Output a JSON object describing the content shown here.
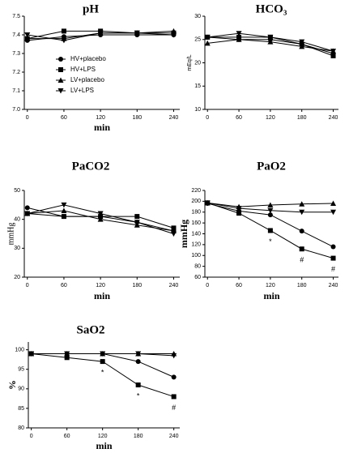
{
  "chart_data": [
    {
      "type": "line",
      "title": "pH",
      "x_label": "min",
      "x": [
        0,
        60,
        120,
        180,
        240
      ],
      "xlim": [
        -5,
        250
      ],
      "xticks": [
        0,
        60,
        120,
        180,
        240
      ],
      "ylim": [
        7.0,
        7.5
      ],
      "yticks": [
        {
          "value": 7.0,
          "label": "7.0"
        },
        7.1,
        7.2,
        7.3,
        7.4,
        7.5
      ],
      "legend": "upper-left",
      "series": [
        {
          "name": "HV+placebo",
          "marker": "circle",
          "color": "#000000",
          "values": [
            7.37,
            7.39,
            7.4,
            7.4,
            7.4
          ]
        },
        {
          "name": "HV+LPS",
          "marker": "square",
          "color": "#000000",
          "values": [
            7.38,
            7.42,
            7.42,
            7.41,
            7.41
          ]
        },
        {
          "name": "LV+placebo",
          "marker": "triangle-up",
          "color": "#000000",
          "values": [
            7.38,
            7.38,
            7.41,
            7.41,
            7.42
          ]
        },
        {
          "name": "LV+LPS",
          "marker": "triangle-down",
          "color": "#000000",
          "values": [
            7.4,
            7.37,
            7.41,
            7.41,
            7.4
          ]
        }
      ]
    },
    {
      "type": "line",
      "title": "HCO₃",
      "y_label": "mEq/L",
      "x": [
        0,
        60,
        120,
        180,
        240
      ],
      "xlim": [
        -5,
        250
      ],
      "xticks": [
        0,
        60,
        120,
        180,
        240
      ],
      "ylim": [
        10,
        30
      ],
      "yticks": [
        10,
        15,
        20,
        25,
        30
      ],
      "series": [
        {
          "marker": "circle",
          "color": "#000000",
          "values": [
            25.5,
            25,
            25,
            24,
            22
          ]
        },
        {
          "marker": "square",
          "color": "#000000",
          "values": [
            25.5,
            25.5,
            25.5,
            24,
            21.5
          ]
        },
        {
          "marker": "triangle-up",
          "color": "#000000",
          "values": [
            24.2,
            25,
            24.5,
            23.5,
            22.5
          ]
        },
        {
          "marker": "triangle-down",
          "color": "#000000",
          "values": [
            25.5,
            26.3,
            25.5,
            24.5,
            22.5
          ]
        }
      ]
    },
    {
      "type": "line",
      "title": "PaCO2",
      "x_label": "min",
      "y_label": "mmHg",
      "x": [
        0,
        60,
        120,
        180,
        240
      ],
      "xlim": [
        -5,
        250
      ],
      "xticks": [
        0,
        60,
        120,
        180,
        240
      ],
      "ylim": [
        20,
        50
      ],
      "yticks": [
        20,
        30,
        40,
        50
      ],
      "series": [
        {
          "marker": "circle",
          "color": "#000000",
          "values": [
            44,
            41,
            41,
            39,
            36
          ]
        },
        {
          "marker": "square",
          "color": "#000000",
          "values": [
            42,
            41,
            41,
            41,
            37
          ]
        },
        {
          "marker": "triangle-up",
          "color": "#000000",
          "values": [
            42,
            43,
            40,
            38,
            36
          ]
        },
        {
          "marker": "triangle-down",
          "color": "#000000",
          "values": [
            42,
            45,
            42,
            39,
            35
          ]
        }
      ]
    },
    {
      "type": "line",
      "title": "PaO2",
      "x_label": "min",
      "y_label": "mmHg",
      "x": [
        0,
        60,
        120,
        180,
        240
      ],
      "xlim": [
        -5,
        250
      ],
      "xticks": [
        0,
        60,
        120,
        180,
        240
      ],
      "ylim": [
        60,
        220
      ],
      "yticks": [
        60,
        80,
        100,
        120,
        140,
        160,
        180,
        200,
        220
      ],
      "series": [
        {
          "marker": "circle",
          "color": "#000000",
          "values": [
            196,
            182,
            175,
            145,
            116
          ]
        },
        {
          "marker": "square",
          "color": "#000000",
          "values": [
            197,
            178,
            146,
            112,
            95
          ],
          "annotations": [
            {
              "x": 120,
              "text": "*"
            },
            {
              "x": 180,
              "text": "#"
            },
            {
              "x": 240,
              "text": "#"
            }
          ]
        },
        {
          "marker": "triangle-up",
          "color": "#000000",
          "values": [
            197,
            190,
            193,
            195,
            196
          ]
        },
        {
          "marker": "triangle-down",
          "color": "#000000",
          "values": [
            197,
            187,
            183,
            180,
            180
          ]
        }
      ]
    },
    {
      "type": "line",
      "title": "SaO2",
      "x_label": "min",
      "y_label": "%",
      "x": [
        0,
        60,
        120,
        180,
        240
      ],
      "xlim": [
        -5,
        250
      ],
      "xticks": [
        0,
        60,
        120,
        180,
        240
      ],
      "ylim": [
        80,
        102
      ],
      "yticks": [
        80,
        85,
        90,
        95,
        100
      ],
      "series": [
        {
          "marker": "circle",
          "color": "#000000",
          "values": [
            99,
            99,
            99,
            97,
            93
          ]
        },
        {
          "marker": "square",
          "color": "#000000",
          "values": [
            99,
            98,
            97,
            91,
            88
          ],
          "annotations": [
            {
              "x": 120,
              "text": "*"
            },
            {
              "x": 180,
              "text": "*"
            },
            {
              "x": 240,
              "text": "#"
            }
          ]
        },
        {
          "marker": "triangle-up",
          "color": "#000000",
          "values": [
            99,
            99,
            99,
            99,
            99
          ]
        },
        {
          "marker": "triangle-down",
          "color": "#000000",
          "values": [
            99,
            99,
            99,
            99,
            98.5
          ]
        }
      ]
    }
  ]
}
